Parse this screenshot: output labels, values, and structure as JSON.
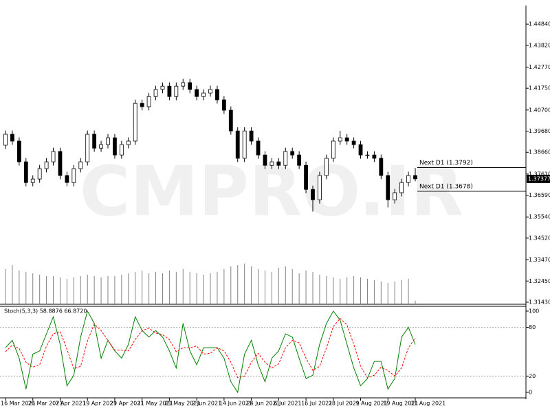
{
  "chart_data": [
    {
      "type": "candlestick",
      "watermark": "CMPRO.IR",
      "open": [
        1.39,
        1.3953,
        1.392,
        1.382,
        1.372,
        1.3737,
        1.3787,
        1.382,
        1.387,
        1.3754,
        1.372,
        1.3787,
        1.382,
        1.3953,
        1.3886,
        1.3903,
        1.3936,
        1.3853,
        1.3903,
        1.392,
        1.4102,
        1.4086,
        1.4135,
        1.4169,
        1.4185,
        1.4135,
        1.4185,
        1.4202,
        1.4169,
        1.4135,
        1.4152,
        1.4169,
        1.4119,
        1.4069,
        1.3969,
        1.3837,
        1.3969,
        1.392,
        1.3853,
        1.3803,
        1.382,
        1.3803,
        1.387,
        1.3853,
        1.3803,
        1.3687,
        1.3637,
        1.3754,
        1.3837,
        1.392,
        1.3936,
        1.392,
        1.3903,
        1.3853,
        1.3853,
        1.3837,
        1.3754,
        1.3637,
        1.3671,
        1.372,
        1.3754
      ],
      "high": [
        1.3971,
        1.3971,
        1.3938,
        1.3838,
        1.3755,
        1.3805,
        1.3838,
        1.3888,
        1.3888,
        1.3772,
        1.3805,
        1.3838,
        1.3971,
        1.3971,
        1.3921,
        1.3954,
        1.3954,
        1.3921,
        1.3938,
        1.412,
        1.412,
        1.4153,
        1.4187,
        1.4203,
        1.4203,
        1.4203,
        1.422,
        1.422,
        1.4187,
        1.417,
        1.4187,
        1.4187,
        1.4137,
        1.4087,
        1.3987,
        1.3987,
        1.3987,
        1.3938,
        1.3871,
        1.3838,
        1.3838,
        1.3888,
        1.3888,
        1.3871,
        1.3821,
        1.3705,
        1.3772,
        1.3855,
        1.3938,
        1.397,
        1.3954,
        1.3938,
        1.3921,
        1.3871,
        1.3871,
        1.3855,
        1.3772,
        1.3689,
        1.3738,
        1.3772,
        1.379
      ],
      "low": [
        1.3882,
        1.3902,
        1.3802,
        1.3702,
        1.3702,
        1.3719,
        1.3769,
        1.3802,
        1.3736,
        1.3702,
        1.3702,
        1.3769,
        1.3802,
        1.3868,
        1.3868,
        1.3885,
        1.3835,
        1.3835,
        1.3885,
        1.3902,
        1.4068,
        1.4068,
        1.4117,
        1.4151,
        1.4117,
        1.4117,
        1.4167,
        1.4151,
        1.4117,
        1.4117,
        1.4134,
        1.4101,
        1.4051,
        1.3951,
        1.3819,
        1.3819,
        1.3902,
        1.3835,
        1.3785,
        1.3785,
        1.3785,
        1.3785,
        1.3835,
        1.3785,
        1.3669,
        1.358,
        1.3619,
        1.3736,
        1.3819,
        1.3902,
        1.3902,
        1.3885,
        1.3835,
        1.3835,
        1.3819,
        1.3736,
        1.36,
        1.3619,
        1.3653,
        1.3702,
        1.3726
      ],
      "close": [
        1.3953,
        1.392,
        1.382,
        1.372,
        1.3737,
        1.3787,
        1.382,
        1.387,
        1.3754,
        1.372,
        1.3787,
        1.382,
        1.3953,
        1.3886,
        1.3903,
        1.3936,
        1.3853,
        1.3903,
        1.392,
        1.4102,
        1.4086,
        1.4135,
        1.4169,
        1.4185,
        1.4135,
        1.4185,
        1.4202,
        1.4169,
        1.4135,
        1.4152,
        1.4169,
        1.4119,
        1.4069,
        1.3969,
        1.3837,
        1.3969,
        1.392,
        1.3853,
        1.3803,
        1.382,
        1.3803,
        1.387,
        1.3853,
        1.3803,
        1.3687,
        1.3637,
        1.3754,
        1.3837,
        1.392,
        1.3936,
        1.392,
        1.3903,
        1.3853,
        1.3853,
        1.3837,
        1.3754,
        1.3637,
        1.3671,
        1.372,
        1.3754,
        1.37377
      ],
      "volume": [
        50,
        56,
        48,
        46,
        44,
        42,
        40,
        40,
        38,
        36,
        38,
        40,
        42,
        40,
        38,
        40,
        40,
        42,
        44,
        46,
        48,
        44,
        46,
        44,
        48,
        46,
        50,
        46,
        44,
        42,
        44,
        46,
        50,
        54,
        56,
        58,
        54,
        50,
        48,
        46,
        52,
        54,
        50,
        44,
        48,
        46,
        42,
        40,
        38,
        36,
        38,
        40,
        38,
        36,
        34,
        32,
        30,
        32,
        34,
        36,
        4
      ],
      "vlim": [
        0,
        60
      ],
      "bull_color": "#ffffff",
      "bear_color": "#000000",
      "volume_color": "#808080",
      "ylim": [
        1.3133,
        1.4574
      ],
      "yticks": [
        {
          "value": 1.4484,
          "label": "1.44840"
        },
        {
          "value": 1.4382,
          "label": "1.43820"
        },
        {
          "value": 1.4277,
          "label": "1.42770"
        },
        {
          "value": 1.4175,
          "label": "1.41750"
        },
        {
          "value": 1.407,
          "label": "1.40700"
        },
        {
          "value": 1.3968,
          "label": "1.39680"
        },
        {
          "value": 1.3866,
          "label": "1.38660"
        },
        {
          "value": 1.3761,
          "label": "1.37610"
        },
        {
          "value": 1.3659,
          "label": "1.36590"
        },
        {
          "value": 1.3554,
          "label": "1.35540"
        },
        {
          "value": 1.3452,
          "label": "1.34520"
        },
        {
          "value": 1.3347,
          "label": "1.33470"
        },
        {
          "value": 1.3245,
          "label": "1.32450"
        },
        {
          "value": 1.3143,
          "label": "1.31430"
        }
      ],
      "levels": [
        {
          "value": 1.3792,
          "label": "Next D1 (1.3792)"
        },
        {
          "value": 1.3678,
          "label": "Next D1 (1.3678)"
        }
      ],
      "last_price": {
        "value": 1.37377,
        "label": "1.37377"
      }
    },
    {
      "type": "line",
      "title": "Stoch(5,3,3) 58.8876 66.8720",
      "categories": [
        "16 Mar 2021",
        null,
        null,
        null,
        "26 Mar 2021",
        null,
        null,
        null,
        "7 Apr 2021",
        null,
        null,
        null,
        "19 Apr 2021",
        null,
        null,
        null,
        "29 Apr 2021",
        null,
        null,
        null,
        "11 May 2021",
        null,
        null,
        null,
        "21 May 2021",
        null,
        null,
        null,
        "2 Jun 2021",
        null,
        null,
        null,
        "14 Jun 2021",
        null,
        null,
        null,
        "24 Jun 2021",
        null,
        null,
        null,
        "6 Jul 2021",
        null,
        null,
        null,
        "16 Jul 2021",
        null,
        null,
        null,
        "28 Jul 2021",
        null,
        null,
        null,
        "9 Aug 2021",
        null,
        null,
        null,
        "19 Aug 2021",
        null,
        null,
        null,
        "31 Aug 2021"
      ],
      "series": [
        {
          "color": "#008000",
          "dashed": false,
          "values": [
            55,
            64,
            42,
            4,
            47,
            51,
            72,
            93,
            59,
            8,
            21,
            68,
            100,
            85,
            42,
            64,
            51,
            42,
            59,
            93,
            76,
            68,
            76,
            68,
            51,
            30,
            85,
            51,
            34,
            55,
            55,
            55,
            42,
            13,
            0,
            47,
            64,
            34,
            13,
            42,
            51,
            72,
            68,
            42,
            17,
            21,
            59,
            85,
            100,
            89,
            59,
            30,
            8,
            17,
            38,
            38,
            4,
            17,
            68,
            80,
            58.8876
          ]
        },
        {
          "color": "#ff0000",
          "dashed": true,
          "values": [
            50,
            58,
            54,
            37,
            31,
            34,
            57,
            72,
            75,
            53,
            29,
            32,
            63,
            84,
            76,
            64,
            52,
            52,
            51,
            65,
            76,
            79,
            73,
            71,
            65,
            50,
            55,
            55,
            57,
            47,
            48,
            55,
            51,
            37,
            18,
            20,
            37,
            48,
            37,
            30,
            35,
            55,
            64,
            61,
            42,
            27,
            32,
            55,
            81,
            91,
            83,
            59,
            32,
            18,
            21,
            31,
            27,
            20,
            30,
            55,
            66.872
          ]
        }
      ],
      "ylim": [
        -6.8,
        105.9
      ],
      "yticks": [
        0,
        20,
        80,
        100
      ],
      "levels": [
        20,
        80
      ]
    }
  ]
}
